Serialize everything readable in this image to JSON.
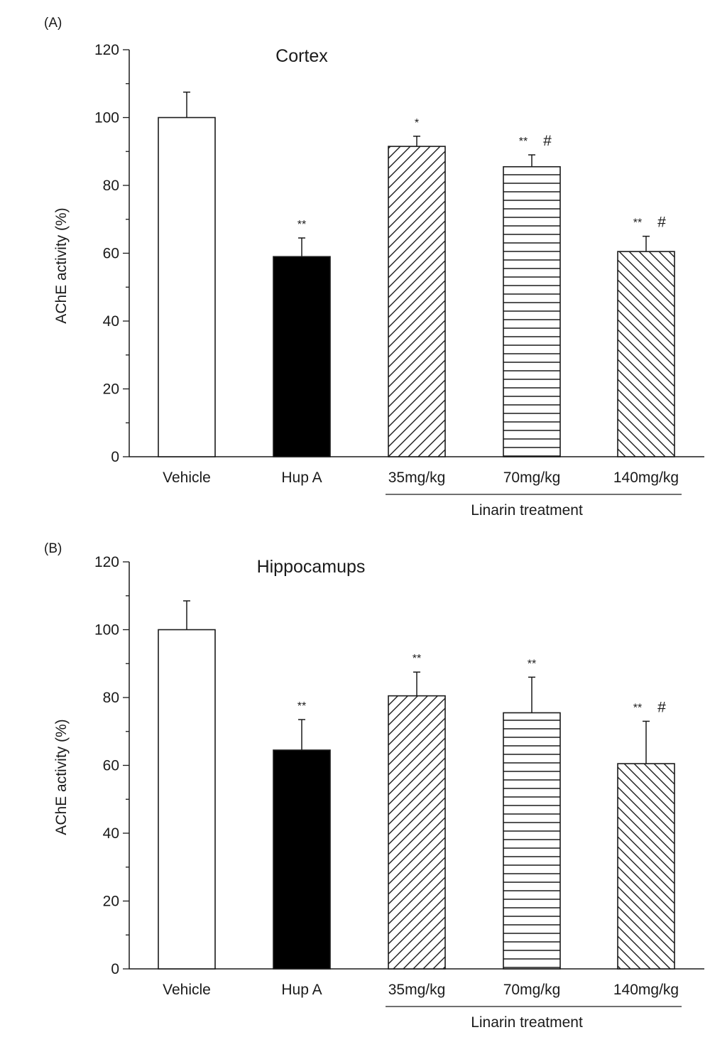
{
  "chart_data": [
    {
      "type": "bar",
      "panel_label": "(A)",
      "title": "Cortex",
      "ylabel": "AChE activity (%)",
      "ylim": [
        0,
        120
      ],
      "yticks": [
        0,
        20,
        40,
        60,
        80,
        100,
        120
      ],
      "categories": [
        "Vehicle",
        "Hup A",
        "35mg/kg",
        "70mg/kg",
        "140mg/kg"
      ],
      "values": [
        100,
        59,
        91.5,
        85.5,
        60.5
      ],
      "errors": [
        7.5,
        5.5,
        3,
        3.5,
        4.5
      ],
      "annotations": [
        "",
        "**",
        "*",
        "** #",
        "** #"
      ],
      "fills": [
        "white",
        "black",
        "diag-up",
        "horizontal",
        "diag-down"
      ],
      "group_label": "Linarin treatment",
      "group_categories": [
        "35mg/kg",
        "70mg/kg",
        "140mg/kg"
      ],
      "grid": false
    },
    {
      "type": "bar",
      "panel_label": "(B)",
      "title": "Hippocamups",
      "ylabel": "AChE activity (%)",
      "ylim": [
        0,
        120
      ],
      "yticks": [
        0,
        20,
        40,
        60,
        80,
        100,
        120
      ],
      "categories": [
        "Vehicle",
        "Hup A",
        "35mg/kg",
        "70mg/kg",
        "140mg/kg"
      ],
      "values": [
        100,
        64.5,
        80.5,
        75.5,
        60.5
      ],
      "errors": [
        8.5,
        9,
        7,
        10.5,
        12.5
      ],
      "annotations": [
        "",
        "**",
        "**",
        "**",
        "** #"
      ],
      "fills": [
        "white",
        "black",
        "diag-up",
        "horizontal",
        "diag-down"
      ],
      "group_label": "Linarin treatment",
      "group_categories": [
        "35mg/kg",
        "70mg/kg",
        "140mg/kg"
      ],
      "grid": false
    }
  ]
}
